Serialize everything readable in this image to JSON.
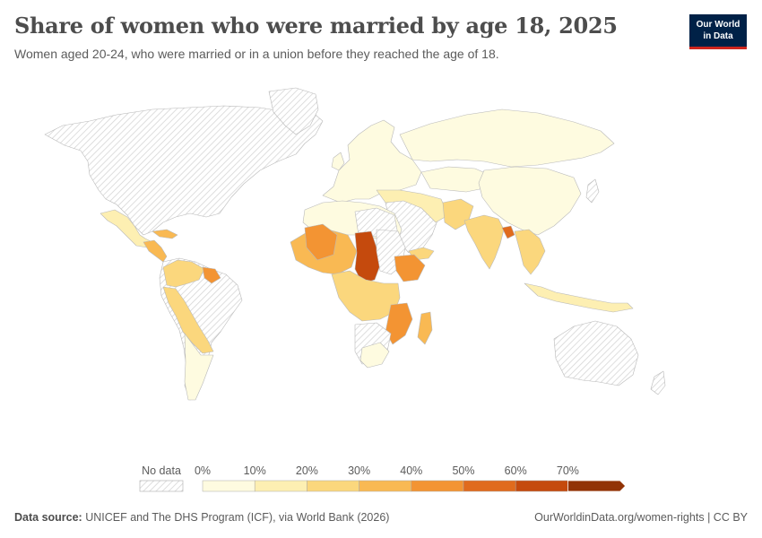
{
  "header": {
    "title": "Share of women who were married by age 18, 2025",
    "subtitle": "Women aged 20-24, who were married or in a union before they reached the age of 18.",
    "logo_line1": "Our World",
    "logo_line2": "in Data"
  },
  "legend": {
    "no_data_label": "No data",
    "bins": [
      {
        "from": 0,
        "to": 10,
        "color": "#fefbe0"
      },
      {
        "from": 10,
        "to": 20,
        "color": "#fdefb2"
      },
      {
        "from": 20,
        "to": 30,
        "color": "#fbd77d"
      },
      {
        "from": 30,
        "to": 40,
        "color": "#f9b953"
      },
      {
        "from": 40,
        "to": 50,
        "color": "#f39433"
      },
      {
        "from": 50,
        "to": 60,
        "color": "#e06b1d"
      },
      {
        "from": 60,
        "to": 70,
        "color": "#c54a0d"
      },
      {
        "from": 70,
        "to": null,
        "color": "#923306"
      }
    ],
    "tick_labels": [
      "0%",
      "10%",
      "20%",
      "30%",
      "40%",
      "50%",
      "60%",
      "70%"
    ]
  },
  "footer": {
    "source_label": "Data source:",
    "source_text": "UNICEF and The DHS Program (ICF), via World Bank (2026)",
    "url": "OurWorldinData.org/women-rights",
    "license": "CC BY"
  },
  "colors": {
    "no_data_hatch": "#d6d6d6",
    "border": "#aaaaaa"
  }
}
